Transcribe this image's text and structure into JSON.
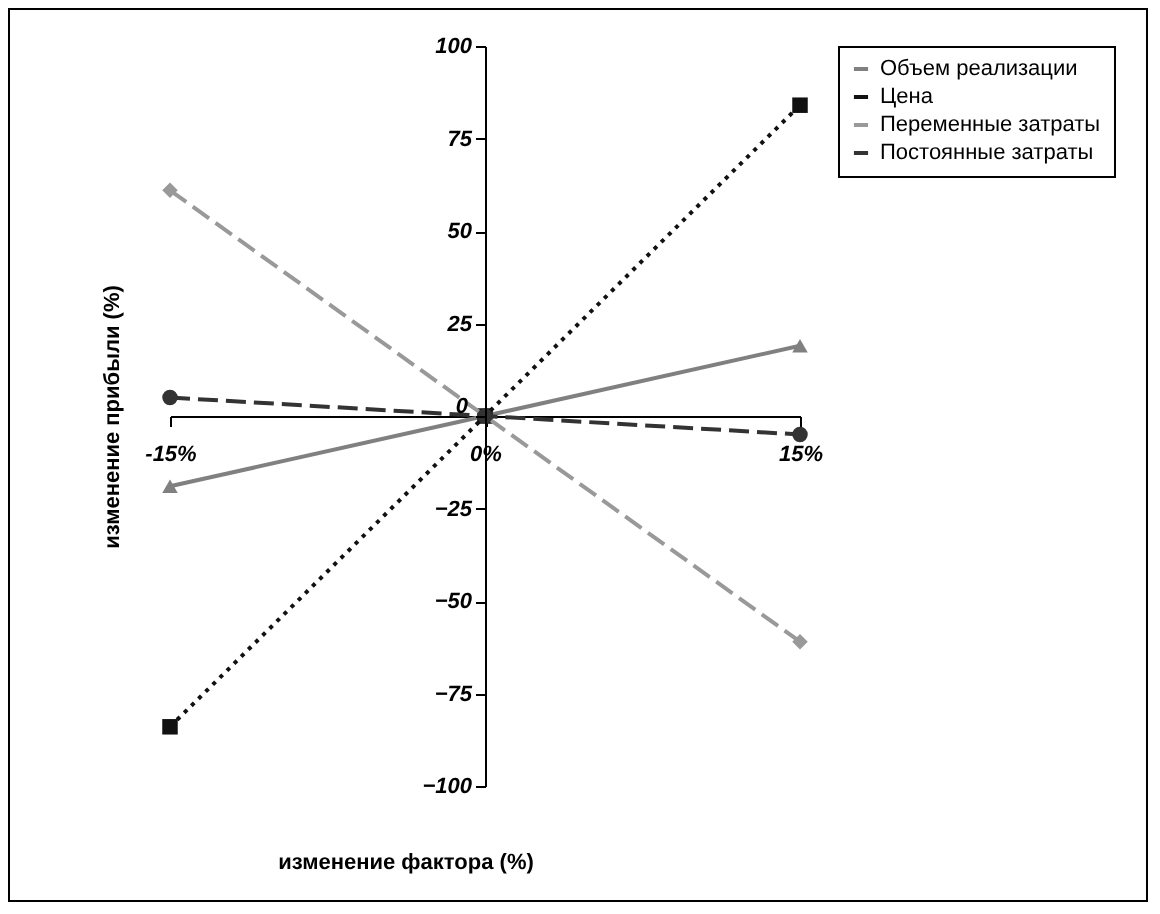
{
  "chart_data": {
    "type": "line",
    "xlabel": "изменение фактора (%)",
    "ylabel": "изменение прибыли (%)",
    "x": [
      -15,
      0,
      15
    ],
    "xlim": [
      -15,
      15
    ],
    "xticks": [
      {
        "value": -15,
        "label": "-15%"
      },
      {
        "value": 0,
        "label": "0%"
      },
      {
        "value": 15,
        "label": "15%"
      }
    ],
    "ylim": [
      -100,
      100
    ],
    "yticks": [
      -100,
      -75,
      -50,
      -25,
      0,
      25,
      50,
      75,
      100
    ],
    "grid": false,
    "legend": "right",
    "series": [
      {
        "name": "Объем реализации",
        "color": "#808080",
        "line_style": "solid",
        "marker": "triangle",
        "values": [
          -19,
          0,
          19
        ]
      },
      {
        "name": "Цена",
        "color": "#111111",
        "line_style": "dotted",
        "marker": "square",
        "values": [
          -84,
          0,
          84
        ]
      },
      {
        "name": "Переменные затраты",
        "color": "#999999",
        "line_style": "dashed",
        "marker": "diamond",
        "values": [
          61,
          0,
          -61
        ]
      },
      {
        "name": "Постоянные затраты",
        "color": "#333333",
        "line_style": "dashed",
        "marker": "circle",
        "values": [
          5,
          0,
          -5
        ]
      }
    ]
  }
}
